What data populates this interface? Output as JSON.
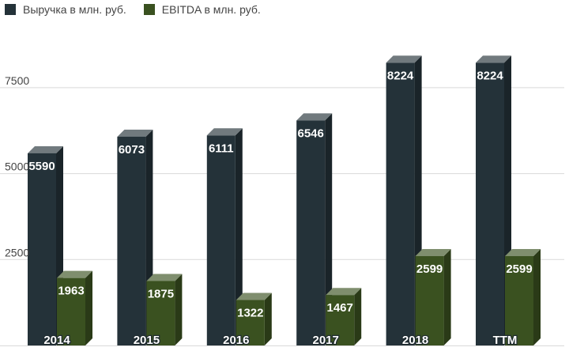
{
  "chart_data": {
    "type": "bar",
    "categories": [
      "2014",
      "2015",
      "2016",
      "2017",
      "2018",
      "TTM"
    ],
    "series": [
      {
        "name": "Выручка в млн. руб.",
        "values": [
          5590,
          6073,
          6111,
          6546,
          8224,
          8224
        ],
        "color": "#243239"
      },
      {
        "name": "EBITDA в млн. руб.",
        "values": [
          1963,
          1875,
          1322,
          1467,
          2599,
          2599
        ],
        "color": "#3a5120"
      }
    ],
    "yticks": [
      2500,
      5000,
      7500
    ],
    "ylim": [
      0,
      10000
    ],
    "grid": true,
    "legend": "top-left",
    "style": "3d-bars",
    "title": "",
    "xlabel": "",
    "ylabel": ""
  }
}
